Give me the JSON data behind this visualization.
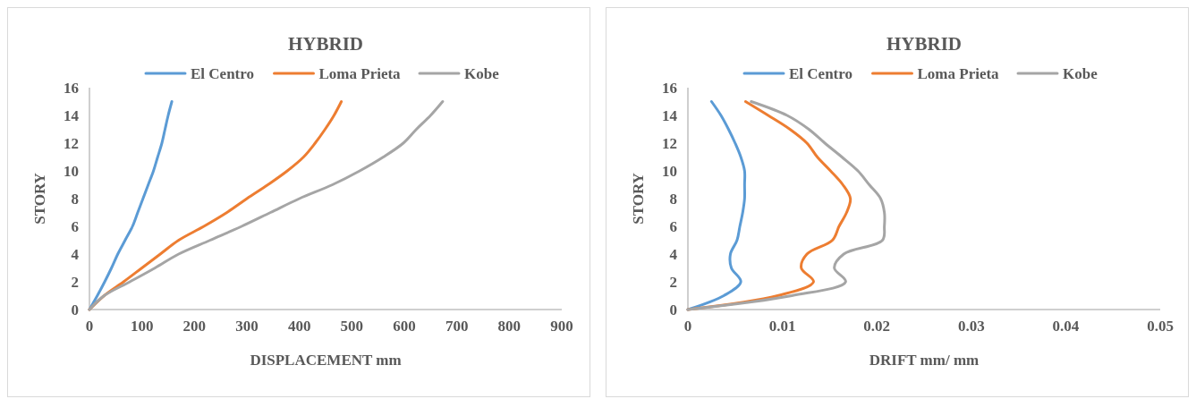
{
  "chart_data": [
    {
      "type": "line",
      "title": "HYBRID",
      "xlabel": "DISPLACEMENT mm",
      "ylabel": "STORY",
      "xlim": [
        0,
        900
      ],
      "xticks": [
        0,
        100,
        200,
        300,
        400,
        500,
        600,
        700,
        800,
        900
      ],
      "ylim": [
        0,
        16
      ],
      "yticks": [
        0,
        2,
        4,
        6,
        8,
        10,
        12,
        14,
        16
      ],
      "legend": "top",
      "grid": false,
      "series": [
        {
          "name": "El Centro",
          "color": "#5b9bd5",
          "x": [
            0,
            15,
            29,
            42,
            54,
            68,
            82,
            92,
            102,
            112,
            122,
            130,
            138,
            144,
            150,
            157
          ],
          "values": [
            0,
            1,
            2,
            3,
            4,
            5,
            6,
            7,
            8,
            9,
            10,
            11,
            12,
            13,
            14,
            15
          ]
        },
        {
          "name": "Loma Prieta",
          "color": "#ed7d31",
          "x": [
            0,
            28,
            65,
            100,
            135,
            170,
            218,
            262,
            300,
            340,
            377,
            408,
            430,
            449,
            466,
            480
          ],
          "values": [
            0,
            1,
            2,
            3,
            4,
            5,
            6,
            7,
            8,
            9,
            10,
            11,
            12,
            13,
            14,
            15
          ]
        },
        {
          "name": "Kobe",
          "color": "#a5a5a5",
          "x": [
            0,
            28,
            77,
            125,
            170,
            230,
            290,
            345,
            400,
            463,
            515,
            560,
            598,
            623,
            650,
            673
          ],
          "values": [
            0,
            1,
            2,
            3,
            4,
            5,
            6,
            7,
            8,
            9,
            10,
            11,
            12,
            13,
            14,
            15
          ]
        }
      ]
    },
    {
      "type": "line",
      "title": "HYBRID",
      "xlabel": "DRIFT mm/ mm",
      "ylabel": "STORY",
      "xlim": [
        0,
        0.05
      ],
      "xticks": [
        0,
        0.01,
        0.02,
        0.03,
        0.04,
        0.05
      ],
      "ylim": [
        0,
        16
      ],
      "yticks": [
        0,
        2,
        4,
        6,
        8,
        10,
        12,
        14,
        16
      ],
      "legend": "top",
      "grid": false,
      "series": [
        {
          "name": "El Centro",
          "color": "#5b9bd5",
          "x": [
            0,
            0.0038,
            0.0056,
            0.0046,
            0.0045,
            0.0052,
            0.0055,
            0.0058,
            0.006,
            0.006,
            0.006,
            0.0056,
            0.005,
            0.0043,
            0.0035,
            0.0025
          ],
          "values": [
            0,
            1,
            2,
            3,
            4,
            5,
            6,
            7,
            8,
            9,
            10,
            11,
            12,
            13,
            14,
            15
          ]
        },
        {
          "name": "Loma Prieta",
          "color": "#ed7d31",
          "x": [
            0,
            0.0095,
            0.0133,
            0.012,
            0.0126,
            0.0153,
            0.016,
            0.0168,
            0.0172,
            0.0164,
            0.0151,
            0.0137,
            0.0126,
            0.0108,
            0.0085,
            0.0061
          ],
          "values": [
            0,
            1,
            2,
            3,
            4,
            5,
            6,
            7,
            8,
            9,
            10,
            11,
            12,
            13,
            14,
            15
          ]
        },
        {
          "name": "Kobe",
          "color": "#a5a5a5",
          "x": [
            0,
            0.011,
            0.0167,
            0.0155,
            0.0165,
            0.0206,
            0.0208,
            0.0208,
            0.0204,
            0.0192,
            0.018,
            0.0163,
            0.0145,
            0.0128,
            0.0105,
            0.0067
          ],
          "values": [
            0,
            1,
            2,
            3,
            4,
            5,
            6,
            7,
            8,
            9,
            10,
            11,
            12,
            13,
            14,
            15
          ]
        }
      ]
    }
  ]
}
